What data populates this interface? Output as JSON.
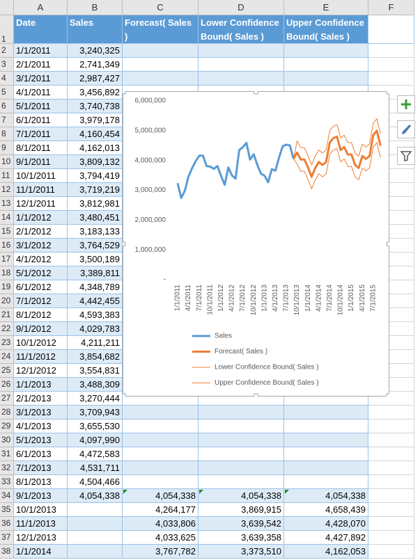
{
  "columns": [
    "A",
    "B",
    "C",
    "D",
    "E",
    "F"
  ],
  "header": {
    "row": "1",
    "cells": [
      "Date",
      "Sales",
      "Forecast( Sales )",
      "Lower Confidence Bound( Sales )",
      "Upper Confidence Bound( Sales )"
    ]
  },
  "rows": [
    {
      "row": "2",
      "cells": [
        "1/1/2011",
        "3,240,325"
      ]
    },
    {
      "row": "3",
      "cells": [
        "2/1/2011",
        "2,741,349"
      ]
    },
    {
      "row": "4",
      "cells": [
        "3/1/2011",
        "2,987,427"
      ]
    },
    {
      "row": "5",
      "cells": [
        "4/1/2011",
        "3,456,892"
      ]
    },
    {
      "row": "6",
      "cells": [
        "5/1/2011",
        "3,740,738"
      ]
    },
    {
      "row": "7",
      "cells": [
        "6/1/2011",
        "3,979,178"
      ]
    },
    {
      "row": "8",
      "cells": [
        "7/1/2011",
        "4,160,454"
      ]
    },
    {
      "row": "9",
      "cells": [
        "8/1/2011",
        "4,162,013"
      ]
    },
    {
      "row": "10",
      "cells": [
        "9/1/2011",
        "3,809,132"
      ]
    },
    {
      "row": "11",
      "cells": [
        "10/1/2011",
        "3,794,419"
      ]
    },
    {
      "row": "12",
      "cells": [
        "11/1/2011",
        "3,719,219"
      ]
    },
    {
      "row": "13",
      "cells": [
        "12/1/2011",
        "3,812,981"
      ]
    },
    {
      "row": "14",
      "cells": [
        "1/1/2012",
        "3,480,451"
      ]
    },
    {
      "row": "15",
      "cells": [
        "2/1/2012",
        "3,183,133"
      ]
    },
    {
      "row": "16",
      "cells": [
        "3/1/2012",
        "3,764,529"
      ]
    },
    {
      "row": "17",
      "cells": [
        "4/1/2012",
        "3,500,189"
      ]
    },
    {
      "row": "18",
      "cells": [
        "5/1/2012",
        "3,389,811"
      ]
    },
    {
      "row": "19",
      "cells": [
        "6/1/2012",
        "4,348,789"
      ]
    },
    {
      "row": "20",
      "cells": [
        "7/1/2012",
        "4,442,455"
      ]
    },
    {
      "row": "21",
      "cells": [
        "8/1/2012",
        "4,593,383"
      ]
    },
    {
      "row": "22",
      "cells": [
        "9/1/2012",
        "4,029,783"
      ]
    },
    {
      "row": "23",
      "cells": [
        "10/1/2012",
        "4,211,211"
      ]
    },
    {
      "row": "24",
      "cells": [
        "11/1/2012",
        "3,854,682"
      ]
    },
    {
      "row": "25",
      "cells": [
        "12/1/2012",
        "3,554,831"
      ]
    },
    {
      "row": "26",
      "cells": [
        "1/1/2013",
        "3,488,309"
      ]
    },
    {
      "row": "27",
      "cells": [
        "2/1/2013",
        "3,270,444"
      ]
    },
    {
      "row": "28",
      "cells": [
        "3/1/2013",
        "3,709,943"
      ]
    },
    {
      "row": "29",
      "cells": [
        "4/1/2013",
        "3,655,530"
      ]
    },
    {
      "row": "30",
      "cells": [
        "5/1/2013",
        "4,097,990"
      ]
    },
    {
      "row": "31",
      "cells": [
        "6/1/2013",
        "4,472,583"
      ]
    },
    {
      "row": "32",
      "cells": [
        "7/1/2013",
        "4,531,711"
      ]
    },
    {
      "row": "33",
      "cells": [
        "8/1/2013",
        "4,504,466"
      ]
    },
    {
      "row": "34",
      "cells": [
        "9/1/2013",
        "4,054,338",
        "4,054,338",
        "4,054,338",
        "4,054,338"
      ]
    },
    {
      "row": "35",
      "cells": [
        "10/1/2013",
        null,
        "4,264,177",
        "3,869,915",
        "4,658,439"
      ]
    },
    {
      "row": "36",
      "cells": [
        "11/1/2013",
        null,
        "4,033,806",
        "3,639,542",
        "4,428,070"
      ]
    },
    {
      "row": "37",
      "cells": [
        "12/1/2013",
        null,
        "4,033,625",
        "3,639,358",
        "4,427,892"
      ]
    },
    {
      "row": "38",
      "cells": [
        "1/1/2014",
        null,
        "3,767,782",
        "3,373,510",
        "4,162,053"
      ]
    }
  ],
  "chart_data": {
    "type": "line",
    "categories": [
      "1/1/2011",
      null,
      null,
      "4/1/2011",
      null,
      null,
      "7/1/2011",
      null,
      null,
      "10/1/2011",
      null,
      null,
      "1/1/2012",
      null,
      null,
      "4/1/2012",
      null,
      null,
      "7/1/2012",
      null,
      null,
      "10/1/2012",
      null,
      null,
      "1/1/2013",
      null,
      null,
      "4/1/2013",
      null,
      null,
      "7/1/2013",
      null,
      null,
      "10/1/2013",
      null,
      null,
      "1/1/2014",
      null,
      null,
      "4/1/2014",
      null,
      null,
      "7/1/2014",
      null,
      null,
      "10/1/2014",
      null,
      null,
      "1/1/2015",
      null,
      null,
      "4/1/2015",
      null,
      null,
      "7/1/2015",
      null,
      null
    ],
    "ylim": [
      0,
      6000000
    ],
    "yticks": [
      {
        "value": 0,
        "label": "-"
      },
      {
        "value": 1000000,
        "label": "1,000,000"
      },
      {
        "value": 2000000,
        "label": "2,000,000"
      },
      {
        "value": 3000000,
        "label": "3,000,000"
      },
      {
        "value": 4000000,
        "label": "4,000,000"
      },
      {
        "value": 5000000,
        "label": "5,000,000"
      },
      {
        "value": 6000000,
        "label": "6,000,000"
      }
    ],
    "grid": false,
    "legend": "bottom",
    "series": [
      {
        "name": "Sales",
        "color": "#5b9bd5",
        "width": 3,
        "values": [
          3240325,
          2741349,
          2987427,
          3456892,
          3740738,
          3979178,
          4160454,
          4162013,
          3809132,
          3794419,
          3719219,
          3812981,
          3480451,
          3183133,
          3764529,
          3500189,
          3389811,
          4348789,
          4442455,
          4593383,
          4029783,
          4211211,
          3854682,
          3554831,
          3488309,
          3270444,
          3709943,
          3655530,
          4097990,
          4472583,
          4531711,
          4504466,
          4054338,
          null,
          null,
          null,
          null,
          null,
          null,
          null,
          null,
          null,
          null,
          null,
          null,
          null,
          null,
          null,
          null,
          null,
          null,
          null,
          null,
          null,
          null,
          null,
          null
        ]
      },
      {
        "name": "Forecast( Sales )",
        "color": "#ed7d31",
        "width": 3,
        "values": [
          null,
          null,
          null,
          null,
          null,
          null,
          null,
          null,
          null,
          null,
          null,
          null,
          null,
          null,
          null,
          null,
          null,
          null,
          null,
          null,
          null,
          null,
          null,
          null,
          null,
          null,
          null,
          null,
          null,
          null,
          null,
          null,
          4054338,
          4264177,
          4033806,
          4033625,
          3767782,
          3450000,
          3750000,
          3950000,
          3850000,
          3950000,
          4600000,
          4750000,
          4800000,
          4350000,
          4450000,
          4200000,
          4200000,
          3850000,
          3750000,
          4150000,
          4050000,
          4150000,
          4850000,
          5000000,
          4500000
        ]
      },
      {
        "name": "Lower Confidence Bound( Sales )",
        "color": "#ed7d31",
        "width": 1,
        "values": [
          null,
          null,
          null,
          null,
          null,
          null,
          null,
          null,
          null,
          null,
          null,
          null,
          null,
          null,
          null,
          null,
          null,
          null,
          null,
          null,
          null,
          null,
          null,
          null,
          null,
          null,
          null,
          null,
          null,
          null,
          null,
          null,
          4054338,
          3869915,
          3639542,
          3639358,
          3373510,
          3050000,
          3350000,
          3550000,
          3450000,
          3550000,
          4200000,
          4350000,
          4400000,
          3950000,
          4050000,
          3800000,
          3800000,
          3450000,
          3350000,
          3750000,
          3650000,
          3750000,
          4450000,
          4600000,
          4100000
        ]
      },
      {
        "name": "Upper Confidence Bound( Sales )",
        "color": "#ed7d31",
        "width": 1,
        "values": [
          null,
          null,
          null,
          null,
          null,
          null,
          null,
          null,
          null,
          null,
          null,
          null,
          null,
          null,
          null,
          null,
          null,
          null,
          null,
          null,
          null,
          null,
          null,
          null,
          null,
          null,
          null,
          null,
          null,
          null,
          null,
          null,
          4054338,
          4658439,
          4428070,
          4427892,
          4162053,
          3850000,
          4150000,
          4350000,
          4250000,
          4350000,
          5000000,
          5150000,
          5200000,
          4750000,
          4850000,
          4600000,
          4600000,
          4250000,
          4150000,
          4550000,
          4450000,
          4550000,
          5250000,
          5400000,
          4900000
        ]
      }
    ]
  }
}
